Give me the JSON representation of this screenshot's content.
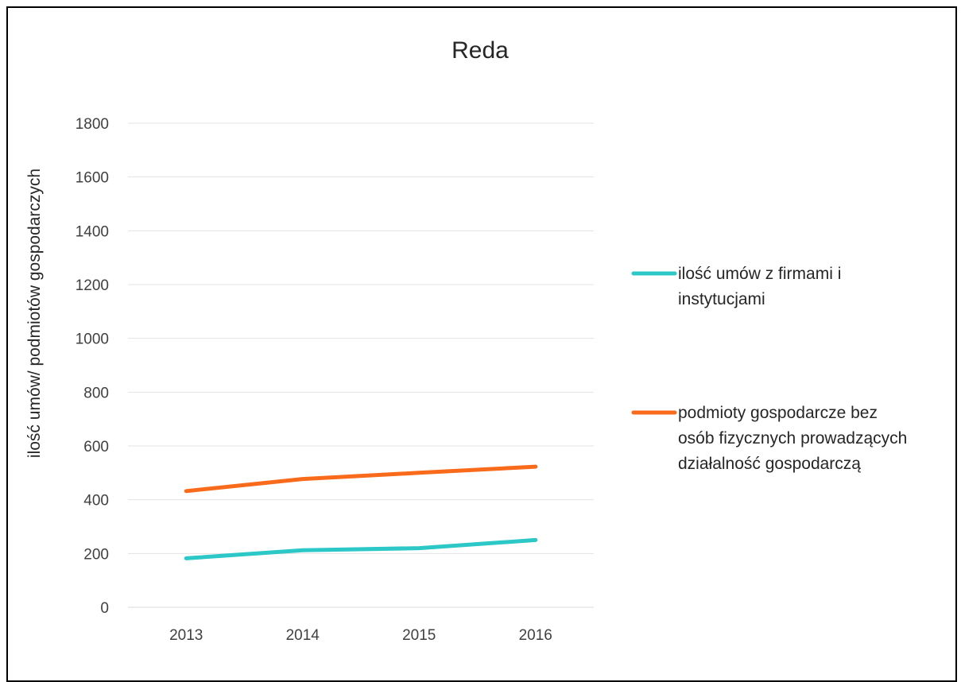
{
  "chart_data": {
    "type": "line",
    "title": "Reda",
    "xlabel": "",
    "ylabel": "ilość umów/ podmiotów gospodarczych",
    "categories": [
      "2013",
      "2014",
      "2015",
      "2016"
    ],
    "ylim": [
      0,
      1800
    ],
    "yticks": [
      0,
      200,
      400,
      600,
      800,
      1000,
      1200,
      1400,
      1600,
      1800
    ],
    "grid": true,
    "legend_position": "right",
    "series": [
      {
        "name": "ilość umów z firmami i instytucjami",
        "legend_lines": [
          "ilość umów z firmami i",
          "instytucjami"
        ],
        "color": "#2CC7C7",
        "values": [
          182,
          212,
          220,
          250
        ]
      },
      {
        "name": "podmioty gospodarcze bez osób fizycznych prowadzących działalność gospodarczą",
        "legend_lines": [
          "podmioty gospodarcze bez",
          "osób fizycznych prowadzących",
          "działalność gospodarczą"
        ],
        "color": "#F96A1B",
        "values": [
          432,
          477,
          500,
          523
        ]
      }
    ]
  }
}
